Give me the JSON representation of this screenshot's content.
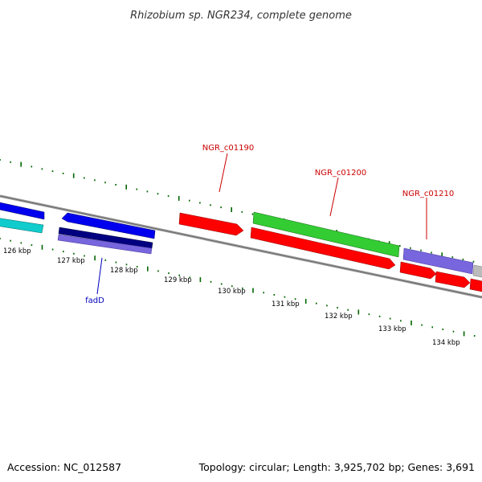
{
  "title": "Rhizobium sp. NGR234, complete genome",
  "footer": {
    "accession": "Accession: NC_012587",
    "summary": "Topology: circular; Length: 3,925,702 bp; Genes: 3,691"
  },
  "scale_labels": [
    "126 kbp",
    "127 kbp",
    "128 kbp",
    "129 kbp",
    "130 kbp",
    "131 kbp",
    "132 kbp",
    "133 kbp",
    "134 kbp"
  ],
  "gene_labels": {
    "ngr_c01190": "NGR_c01190",
    "ngr_c01200": "NGR_c01200",
    "ngr_c01210": "NGR_c01210",
    "fadD": "fadD"
  },
  "colors": {
    "label_red": "#cc0000",
    "label_blue": "#0000bb",
    "tick_green": "#006600",
    "backbone": "#888888",
    "blue": "#0000ee",
    "cyan": "#11cccc",
    "navy": "#000080",
    "slate": "#7766dd",
    "red": "#ff0000",
    "green": "#33cc33",
    "gray": "#bbbbbb"
  }
}
